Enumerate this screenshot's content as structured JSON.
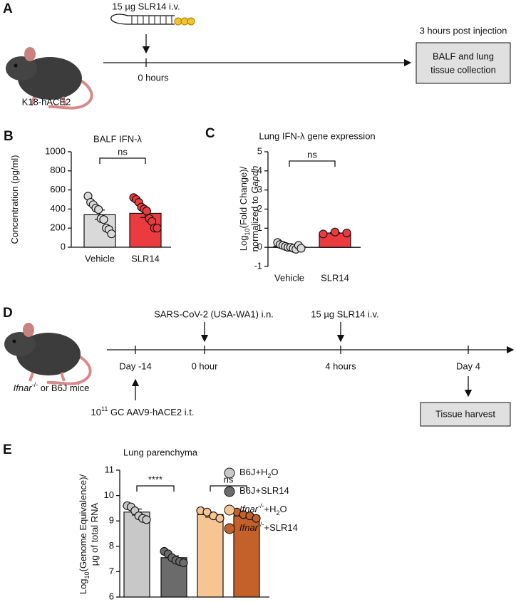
{
  "panel_a": {
    "label": "A",
    "treatment": "15 µg SLR14 i.v.",
    "time": "0 hours",
    "mouse": "K18-hACE2",
    "endpoint": "3 hours post injection",
    "box": [
      "BALF and lung",
      "tissue collection"
    ]
  },
  "panel_d": {
    "label": "D",
    "mouse": [
      {
        "text": "Ifnar",
        "italic": true
      },
      {
        "text": "-/-",
        "sup": true
      },
      {
        "text": " or B6J mice"
      }
    ],
    "infection": "SARS-CoV-2 (USA-WA1)  i.n.",
    "treatment": "15 µg SLR14 i.v.",
    "times": [
      "Day -14",
      "0 hour",
      "4 hours",
      "Day 4"
    ],
    "aav": [
      {
        "text": "10"
      },
      {
        "text": "11",
        "sup": true
      },
      {
        "text": " GC AAV9-hACE2 i.t."
      }
    ],
    "box": "Tissue harvest"
  },
  "chart_data": [
    {
      "type": "bar",
      "panel": "B",
      "title": "BALF IFN-λ",
      "ylabel": [
        [
          {
            "text": "Concentration (pg/ml)"
          }
        ]
      ],
      "categories": [
        "Vehicle",
        "SLR14"
      ],
      "values": [
        340,
        355
      ],
      "errors": [
        50,
        45
      ],
      "colors": [
        "#d9d9d9",
        "#ec3b3f"
      ],
      "points": [
        [
          535,
          470,
          445,
          410,
          395,
          300,
          290,
          200,
          185,
          140
        ],
        [
          520,
          500,
          470,
          420,
          400,
          380,
          300,
          270,
          200,
          200
        ]
      ],
      "ylim": [
        0,
        1000
      ],
      "yticks": [
        0,
        200,
        400,
        600,
        800,
        1000
      ],
      "comparisons": [
        {
          "between": [
            0,
            1
          ],
          "label": "ns"
        }
      ]
    },
    {
      "type": "bar",
      "panel": "C",
      "title": "Lung IFN-λ gene expression",
      "ylabel": [
        [
          {
            "text": "Log"
          },
          {
            "text": "10",
            "sub": true
          },
          {
            "text": "(Fold Change)/"
          }
        ],
        [
          {
            "text": "normalized to "
          },
          {
            "text": "Gapdh",
            "italic": true
          }
        ]
      ],
      "categories": [
        "Vehicle",
        "SLR14"
      ],
      "values": [
        0.05,
        0.75
      ],
      "errors": [
        0.04,
        0.03
      ],
      "colors": [
        "#d9d9d9",
        "#ec3b3f"
      ],
      "points": [
        [
          0.25,
          0.15,
          0.1,
          0.05,
          0,
          0,
          -0.05,
          -0.1,
          0.1,
          -0.05
        ],
        [
          0.7,
          0.8,
          0.75
        ]
      ],
      "ylim": [
        -1,
        5
      ],
      "yticks": [
        -1,
        0,
        1,
        2,
        3,
        4,
        5
      ],
      "comparisons": [
        {
          "between": [
            0,
            1
          ],
          "label": "ns"
        }
      ]
    },
    {
      "type": "bar",
      "panel": "E",
      "title": "Lung parenchyma",
      "ylabel": [
        [
          {
            "text": "Log"
          },
          {
            "text": "10",
            "sub": true
          },
          {
            "text": "(Genome Equivalence)/"
          }
        ],
        [
          {
            "text": "µg of total RNA"
          }
        ]
      ],
      "series": [
        {
          "name": [
            {
              "text": "B6J+H"
            },
            {
              "text": "2",
              "sub": true
            },
            {
              "text": "O"
            }
          ],
          "color": "#c8c8c8",
          "value": 9.35,
          "error": 0.12,
          "points": [
            9.6,
            9.55,
            9.4,
            9.2,
            9.1,
            9.05
          ]
        },
        {
          "name": [
            {
              "text": "B6J+SLR14"
            }
          ],
          "color": "#6b6b6b",
          "value": 7.55,
          "error": 0.07,
          "points": [
            7.8,
            7.7,
            7.55,
            7.45,
            7.4,
            7.35
          ]
        },
        {
          "name": [
            {
              "text": "Ifnar",
              "italic": true
            },
            {
              "text": "-/-",
              "sup": true
            },
            {
              "text": "+H"
            },
            {
              "text": "2",
              "sub": true
            },
            {
              "text": "O"
            }
          ],
          "color": "#f7c592",
          "value": 9.25,
          "error": 0.1,
          "points": [
            9.4,
            9.35,
            9.2,
            9.1
          ]
        },
        {
          "name": [
            {
              "text": "Ifnar",
              "italic": true
            },
            {
              "text": "-/-",
              "sup": true
            },
            {
              "text": "+SLR14"
            }
          ],
          "color": "#c4612b",
          "value": 9.2,
          "error": 0.05,
          "points": [
            9.35,
            9.25,
            9.2,
            9.1
          ]
        }
      ],
      "ylim": [
        6,
        11
      ],
      "yticks": [
        6,
        7,
        8,
        9,
        10,
        11
      ],
      "comparisons": [
        {
          "between": [
            0,
            1
          ],
          "label": "****"
        },
        {
          "between": [
            2,
            3
          ],
          "label": "ns"
        }
      ]
    }
  ]
}
